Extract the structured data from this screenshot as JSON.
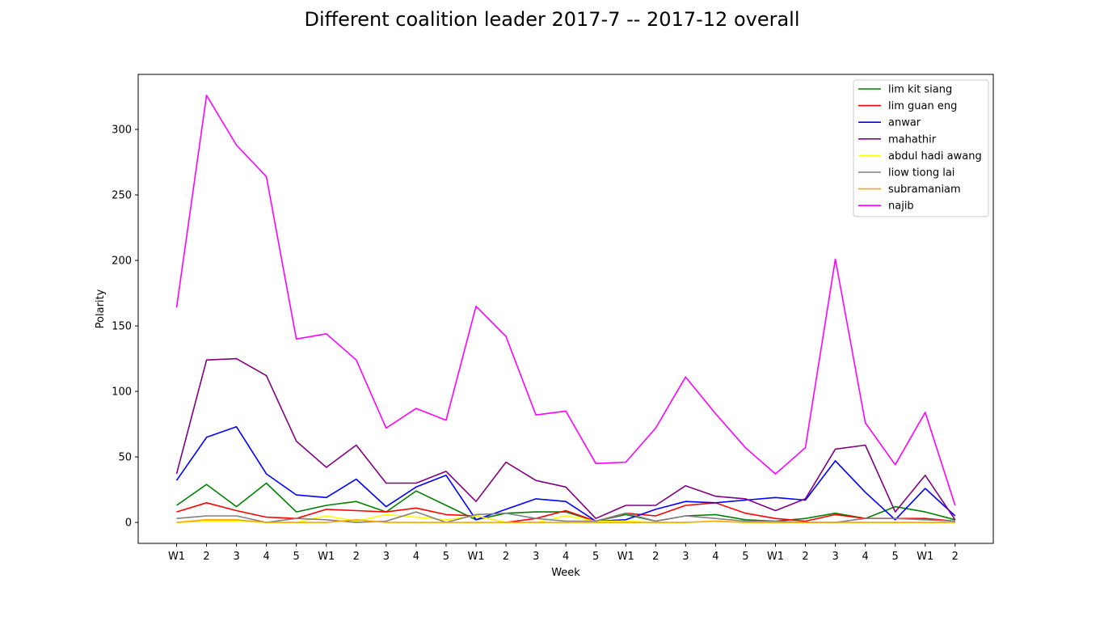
{
  "chart_data": {
    "type": "line",
    "title": "Different coalition leader 2017-7 -- 2017-12 overall",
    "xlabel": "Week",
    "ylabel": "Polarity",
    "categories": [
      "W1",
      "2",
      "3",
      "4",
      "5",
      "W1",
      "2",
      "3",
      "4",
      "5",
      "W1",
      "2",
      "3",
      "4",
      "5",
      "W1",
      "2",
      "3",
      "4",
      "5",
      "W1",
      "2",
      "3",
      "4",
      "5",
      "W1",
      "2"
    ],
    "ylim": [
      -16,
      342
    ],
    "yticks": [
      0,
      50,
      100,
      150,
      200,
      250,
      300
    ],
    "grid": false,
    "legend_position": "top-right",
    "series": [
      {
        "name": "lim kit siang",
        "color": "#008000",
        "values": [
          13,
          29,
          12,
          30,
          8,
          13,
          16,
          8,
          24,
          13,
          2,
          7,
          8,
          8,
          1,
          6,
          1,
          5,
          6,
          2,
          1,
          3,
          7,
          3,
          12,
          8,
          2
        ]
      },
      {
        "name": "lim guan eng",
        "color": "#ff0000",
        "values": [
          8,
          15,
          9,
          4,
          3,
          10,
          9,
          8,
          11,
          6,
          5,
          0,
          3,
          9,
          1,
          7,
          5,
          13,
          15,
          7,
          3,
          1,
          6,
          3,
          3,
          3,
          1
        ]
      },
      {
        "name": "anwar",
        "color": "#0000ff",
        "values": [
          32,
          65,
          73,
          37,
          21,
          19,
          33,
          12,
          27,
          36,
          2,
          10,
          18,
          16,
          1,
          2,
          10,
          16,
          15,
          17,
          19,
          17,
          47,
          23,
          2,
          26,
          5
        ]
      },
      {
        "name": "mahathir",
        "color": "#800080",
        "values": [
          37,
          124,
          125,
          112,
          62,
          42,
          59,
          30,
          30,
          39,
          16,
          46,
          32,
          27,
          3,
          13,
          13,
          28,
          20,
          18,
          9,
          18,
          56,
          59,
          8,
          36,
          2
        ]
      },
      {
        "name": "abdul hadi awang",
        "color": "#ffff00",
        "values": [
          0,
          1,
          1,
          0,
          0,
          5,
          1,
          6,
          4,
          2,
          5,
          0,
          0,
          5,
          1,
          1,
          0,
          0,
          1,
          0,
          0,
          0,
          0,
          0,
          0,
          0,
          0
        ]
      },
      {
        "name": "liow tiong lai",
        "color": "#808080",
        "values": [
          3,
          5,
          5,
          0,
          3,
          2,
          0,
          1,
          8,
          0,
          6,
          7,
          3,
          1,
          1,
          7,
          1,
          5,
          3,
          1,
          1,
          0,
          0,
          3,
          3,
          2,
          1
        ]
      },
      {
        "name": "subramaniam",
        "color": "#ffa500",
        "values": [
          0,
          2,
          2,
          0,
          0,
          0,
          2,
          0,
          0,
          0,
          0,
          0,
          0,
          0,
          0,
          0,
          0,
          0,
          1,
          0,
          0,
          0,
          0,
          0,
          0,
          0,
          0
        ]
      },
      {
        "name": "najib",
        "color": "#ff00ff",
        "values": [
          164,
          326,
          288,
          264,
          140,
          144,
          124,
          72,
          87,
          78,
          165,
          142,
          82,
          85,
          45,
          46,
          72,
          111,
          83,
          57,
          37,
          57,
          201,
          76,
          44,
          84,
          13
        ]
      }
    ]
  }
}
